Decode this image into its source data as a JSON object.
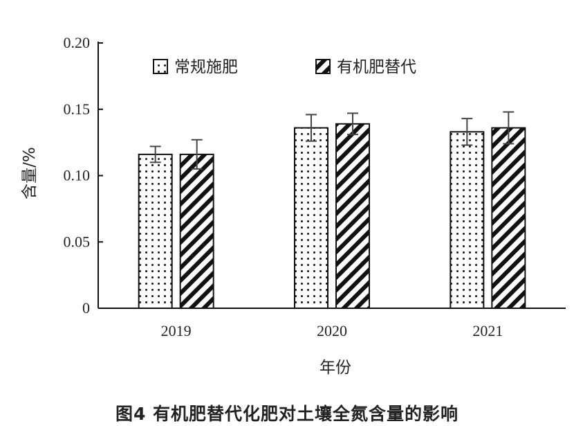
{
  "caption": "图4 有机肥替代化肥对土壤全氮含量的影响",
  "chart_data": {
    "type": "bar",
    "title": "",
    "xlabel": "年份",
    "ylabel": "含量/%",
    "categories": [
      "2019",
      "2020",
      "2021"
    ],
    "ylim": [
      0,
      0.2
    ],
    "yticks": [
      0,
      0.05,
      0.1,
      0.15,
      0.2
    ],
    "ytick_labels": [
      "0",
      "0.05",
      "0.10",
      "0.15",
      "0.20"
    ],
    "legend_position": "top",
    "series": [
      {
        "name": "常规施肥",
        "pattern": "dots",
        "values": [
          0.116,
          0.136,
          0.133
        ],
        "errors": [
          0.006,
          0.01,
          0.01
        ]
      },
      {
        "name": "有机肥替代",
        "pattern": "diagonal-stripes",
        "values": [
          0.116,
          0.139,
          0.136
        ],
        "errors": [
          0.011,
          0.008,
          0.012
        ]
      }
    ],
    "colors": {
      "ink": "#111111",
      "bar_fill": "#ffffff"
    }
  }
}
